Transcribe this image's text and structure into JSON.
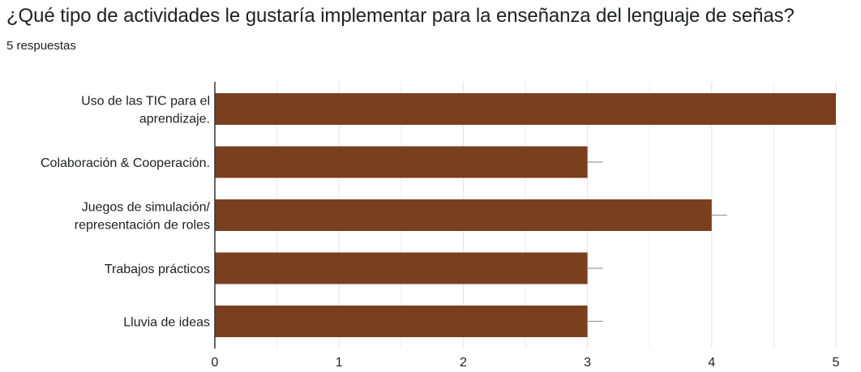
{
  "question": {
    "title": "¿Qué tipo de actividades le gustaría implementar para la enseñanza del lenguaje de señas?",
    "responses": "5 respuestas"
  },
  "colors": {
    "bar": "#7a3f1e",
    "grid": "#e3e3e3",
    "axis": "#333333",
    "text": "#202124"
  },
  "chart_data": {
    "type": "bar",
    "orientation": "horizontal",
    "categories": [
      [
        "Uso de las TIC para el",
        "aprendizaje."
      ],
      [
        "Colaboración & Cooperación."
      ],
      [
        "Juegos de simulación/",
        "representación de roles"
      ],
      [
        "Trabajos prácticos"
      ],
      [
        "Lluvia de ideas"
      ]
    ],
    "values": [
      5,
      3,
      4,
      3,
      3
    ],
    "x_ticks": [
      "0",
      "1",
      "2",
      "3",
      "4",
      "5"
    ],
    "xlim": [
      0,
      5
    ],
    "grid": true
  }
}
